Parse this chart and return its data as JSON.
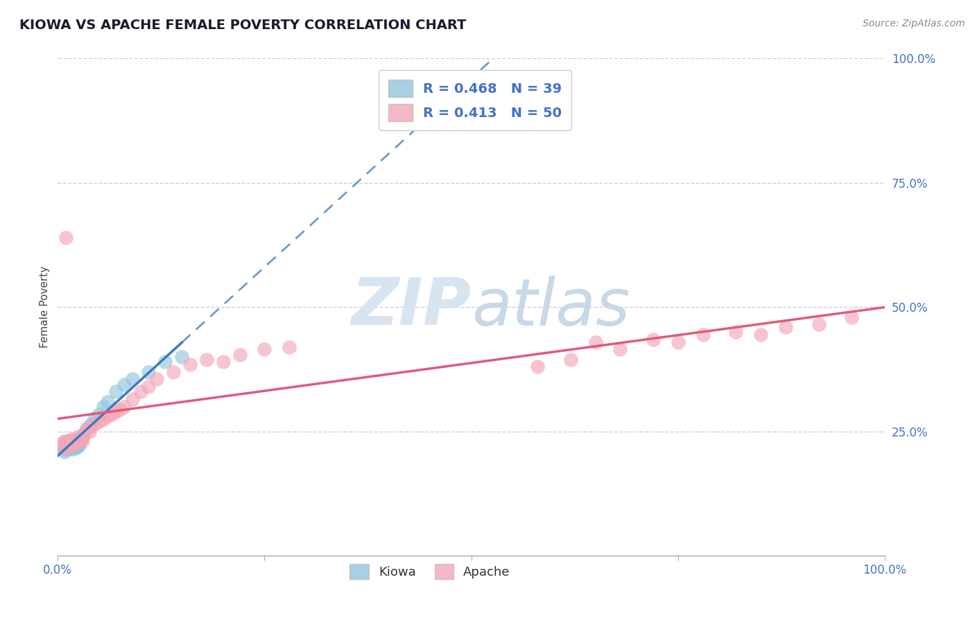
{
  "title": "KIOWA VS APACHE FEMALE POVERTY CORRELATION CHART",
  "source": "Source: ZipAtlas.com",
  "ylabel": "Female Poverty",
  "xlim": [
    0.0,
    1.0
  ],
  "ylim": [
    0.0,
    1.0
  ],
  "kiowa_R": 0.468,
  "kiowa_N": 39,
  "apache_R": 0.413,
  "apache_N": 50,
  "kiowa_color": "#92c5de",
  "apache_color": "#f4a6b8",
  "kiowa_line_color": "#3a7abf",
  "apache_line_color": "#e05a7a",
  "background_color": "#ffffff",
  "grid_color": "#c8d0dc",
  "tick_color": "#4472c4",
  "title_color": "#1a1a2e",
  "source_color": "#888888",
  "watermark_color": "#d8e4f0",
  "kiowa_x": [
    0.005,
    0.007,
    0.008,
    0.009,
    0.01,
    0.01,
    0.01,
    0.011,
    0.012,
    0.013,
    0.014,
    0.015,
    0.015,
    0.016,
    0.017,
    0.018,
    0.019,
    0.02,
    0.021,
    0.022,
    0.023,
    0.025,
    0.026,
    0.028,
    0.03,
    0.032,
    0.035,
    0.038,
    0.04,
    0.045,
    0.05,
    0.055,
    0.06,
    0.07,
    0.08,
    0.09,
    0.11,
    0.13,
    0.15
  ],
  "kiowa_y": [
    0.215,
    0.22,
    0.21,
    0.225,
    0.215,
    0.22,
    0.225,
    0.23,
    0.218,
    0.222,
    0.228,
    0.215,
    0.225,
    0.22,
    0.23,
    0.225,
    0.215,
    0.22,
    0.225,
    0.218,
    0.23,
    0.22,
    0.225,
    0.235,
    0.24,
    0.245,
    0.255,
    0.26,
    0.265,
    0.278,
    0.285,
    0.3,
    0.31,
    0.33,
    0.345,
    0.355,
    0.37,
    0.39,
    0.4
  ],
  "apache_x": [
    0.005,
    0.007,
    0.009,
    0.01,
    0.012,
    0.013,
    0.015,
    0.016,
    0.018,
    0.019,
    0.02,
    0.022,
    0.025,
    0.027,
    0.03,
    0.032,
    0.035,
    0.038,
    0.04,
    0.045,
    0.05,
    0.055,
    0.06,
    0.065,
    0.07,
    0.075,
    0.08,
    0.09,
    0.1,
    0.11,
    0.12,
    0.14,
    0.16,
    0.18,
    0.2,
    0.22,
    0.25,
    0.28,
    0.58,
    0.62,
    0.65,
    0.68,
    0.72,
    0.75,
    0.78,
    0.82,
    0.85,
    0.88,
    0.92,
    0.96
  ],
  "apache_y": [
    0.225,
    0.23,
    0.215,
    0.64,
    0.225,
    0.23,
    0.22,
    0.235,
    0.225,
    0.23,
    0.235,
    0.228,
    0.24,
    0.235,
    0.23,
    0.245,
    0.255,
    0.25,
    0.26,
    0.265,
    0.27,
    0.275,
    0.28,
    0.285,
    0.29,
    0.295,
    0.3,
    0.315,
    0.33,
    0.34,
    0.355,
    0.37,
    0.385,
    0.395,
    0.39,
    0.405,
    0.415,
    0.42,
    0.38,
    0.395,
    0.43,
    0.415,
    0.435,
    0.43,
    0.445,
    0.45,
    0.445,
    0.46,
    0.465,
    0.48
  ]
}
